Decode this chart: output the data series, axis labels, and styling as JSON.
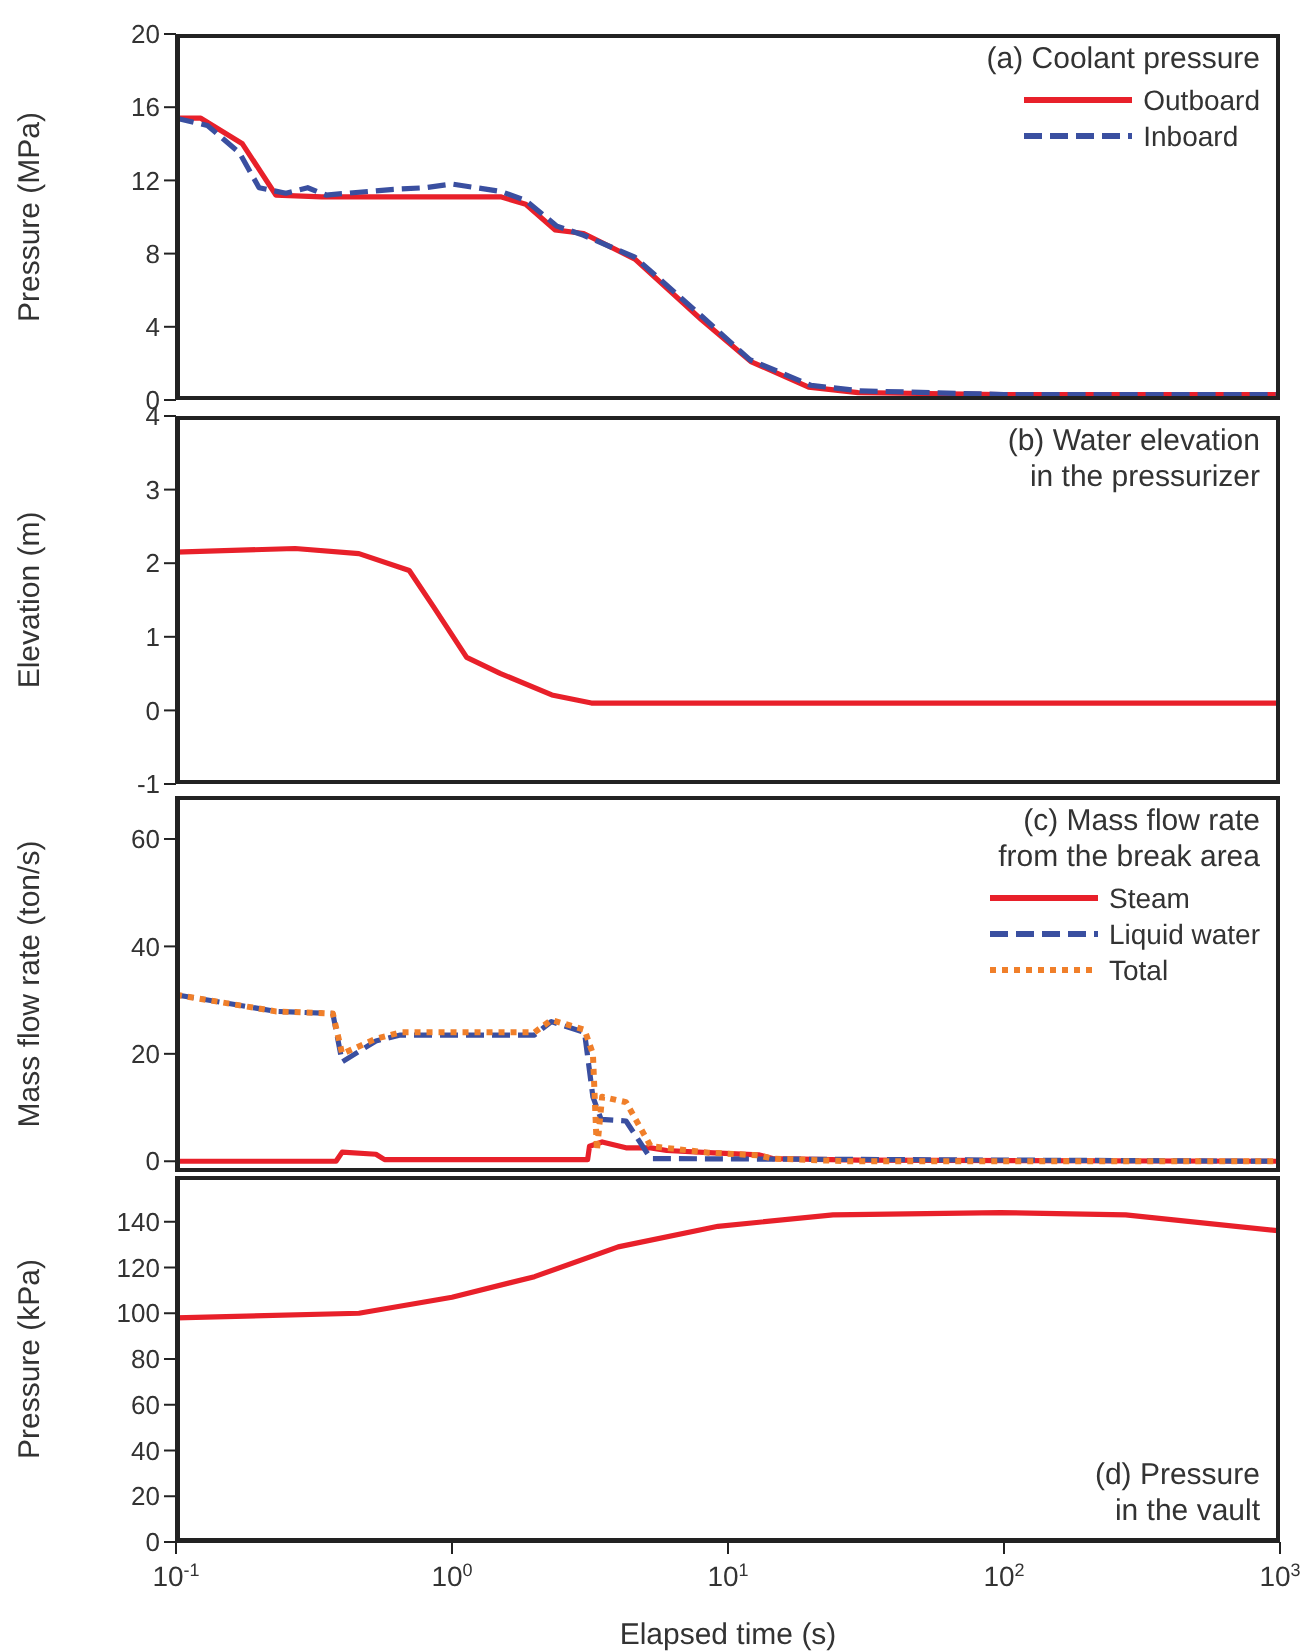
{
  "chart_data": [
    {
      "type": "line",
      "title": "(a) Coolant pressure",
      "ylabel": "Pressure (MPa)",
      "log": "x",
      "xlim": [
        0.1,
        1000
      ],
      "ylim": [
        0,
        20
      ],
      "yticks": [
        0,
        4,
        8,
        12,
        16,
        20
      ],
      "tick_labels": "y",
      "legend": "top right",
      "grid": false,
      "series": [
        {
          "name": "Outboard",
          "color": "#e8202a",
          "line_style": "solid",
          "x": [
            0.1,
            0.123,
            0.174,
            0.23,
            0.337,
            0.805,
            1.5,
            1.85,
            2.36,
            3.0,
            4.6,
            8.0,
            12.1,
            19.6,
            29.6,
            97,
            1000
          ],
          "values": [
            15.4,
            15.4,
            14.0,
            11.2,
            11.1,
            11.1,
            11.1,
            10.7,
            9.3,
            9.1,
            7.7,
            4.4,
            2.1,
            0.7,
            0.4,
            0.3,
            0.3
          ]
        },
        {
          "name": "Inboard",
          "color": "#3a4fa0",
          "line_style": "dashed",
          "x": [
            0.1,
            0.13,
            0.17,
            0.2,
            0.25,
            0.3,
            0.35,
            0.6,
            0.8,
            1.0,
            1.5,
            1.85,
            2.4,
            3.0,
            4.6,
            8.0,
            12,
            20,
            30,
            100,
            1000
          ],
          "values": [
            15.4,
            15.0,
            13.5,
            11.6,
            11.3,
            11.6,
            11.2,
            11.5,
            11.6,
            11.8,
            11.4,
            10.9,
            9.5,
            9.0,
            7.8,
            4.6,
            2.2,
            0.8,
            0.5,
            0.3,
            0.3
          ]
        }
      ]
    },
    {
      "type": "line",
      "title": "(b) Water elevation in the pressurizer",
      "ylabel": "Elevation (m)",
      "log": "x",
      "xlim": [
        0.1,
        1000
      ],
      "ylim": [
        -1,
        4
      ],
      "yticks": [
        -1,
        0,
        1,
        2,
        3,
        4
      ],
      "tick_labels": "y",
      "grid": false,
      "series": [
        {
          "color": "#e8202a",
          "line_style": "solid",
          "x": [
            0.1,
            0.27,
            0.46,
            0.7,
            0.86,
            1.13,
            1.5,
            2.3,
            3.2,
            1000
          ],
          "values": [
            2.15,
            2.2,
            2.13,
            1.9,
            1.4,
            0.72,
            0.5,
            0.21,
            0.1,
            0.1
          ]
        }
      ]
    },
    {
      "type": "line",
      "title": "(c) Mass flow rate from the break area",
      "ylabel": "Mass flow rate (ton/s)",
      "log": "x",
      "xlim": [
        0.1,
        1000
      ],
      "ylim": [
        -2,
        68
      ],
      "yticks": [
        0,
        20,
        40,
        60
      ],
      "tick_labels": "y",
      "legend": "top right",
      "grid": false,
      "series": [
        {
          "name": "Steam",
          "color": "#e8202a",
          "line_style": "solid",
          "x": [
            0.1,
            0.38,
            0.4,
            0.53,
            0.57,
            3.1,
            3.15,
            3.5,
            4.27,
            5.25,
            6,
            8.5,
            12.9,
            14.5,
            30,
            1000
          ],
          "values": [
            0,
            0,
            1.7,
            1.3,
            0.3,
            0.3,
            2.8,
            3.6,
            2.5,
            2.5,
            2.0,
            1.6,
            1.2,
            0.5,
            0.2,
            0
          ]
        },
        {
          "name": "Liquid water",
          "color": "#3a4fa0",
          "line_style": "dashed",
          "x": [
            0.1,
            0.23,
            0.37,
            0.4,
            0.53,
            0.65,
            1.99,
            2.29,
            3.02,
            3.24,
            3.47,
            4.27,
            5.25,
            1000
          ],
          "values": [
            31,
            27.9,
            27.5,
            18.5,
            22.4,
            23.5,
            23.5,
            26,
            24,
            12,
            7.8,
            7.5,
            0.5,
            0
          ]
        },
        {
          "name": "Total",
          "color": "#f07f2a",
          "line_style": "dotted",
          "x": [
            0.1,
            0.23,
            0.37,
            0.4,
            0.53,
            0.65,
            1.99,
            2.29,
            3.02,
            3.24,
            3.35,
            3.5,
            4.27,
            5.25,
            8.5,
            12.9,
            14.5,
            27,
            1000
          ],
          "values": [
            31,
            27.9,
            27.5,
            20,
            22.8,
            24,
            24,
            26.3,
            24.5,
            20,
            2,
            12,
            11,
            2.8,
            1.6,
            1.1,
            0.5,
            0,
            0
          ]
        }
      ]
    },
    {
      "type": "line",
      "title": "(d) Pressure in the vault",
      "xlabel": "Elapsed time (s)",
      "ylabel": "Pressure (kPa)",
      "log": "x",
      "xlim": [
        0.1,
        1000
      ],
      "xticks": [
        {
          "value": 0.1,
          "label": "10$^{-1}$"
        },
        {
          "value": 1,
          "label": "10$^{0}$"
        },
        {
          "value": 10,
          "label": "10$^{1}$"
        },
        {
          "value": 100,
          "label": "10$^{2}$"
        },
        {
          "value": 1000,
          "label": "10$^{3}$"
        }
      ],
      "ylim": [
        0,
        160
      ],
      "yticks": [
        0,
        20,
        40,
        60,
        80,
        100,
        120,
        140
      ],
      "grid": false,
      "series": [
        {
          "color": "#e8202a",
          "line_style": "solid",
          "x": [
            0.1,
            0.46,
            1.0,
            1.99,
            4,
            9.2,
            24,
            97,
            276,
            1000
          ],
          "values": [
            98,
            100,
            107,
            116,
            129,
            138,
            143,
            144,
            143,
            136
          ]
        }
      ]
    }
  ]
}
